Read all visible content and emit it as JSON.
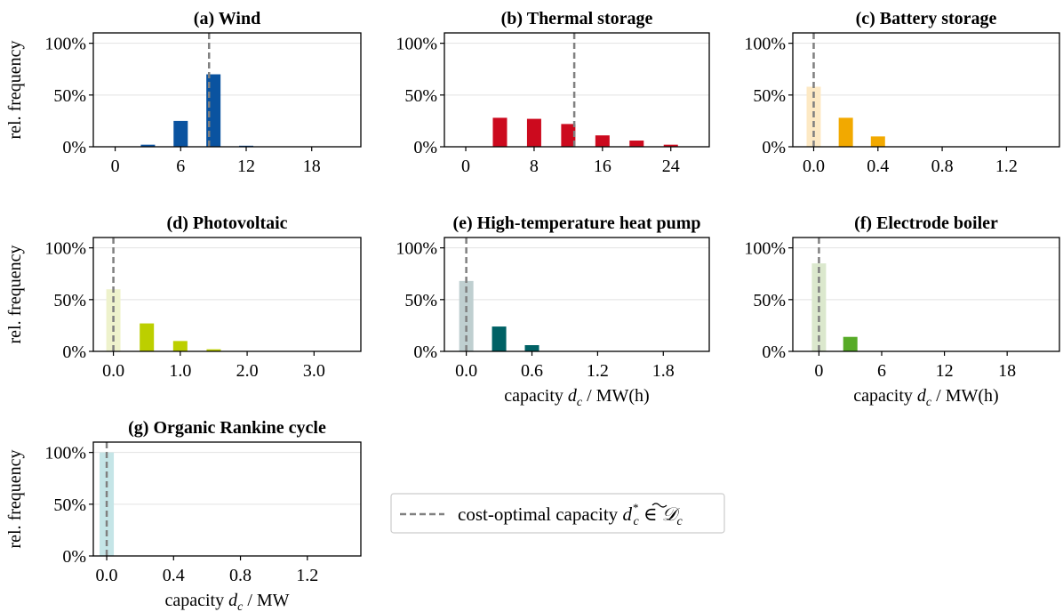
{
  "legend": {
    "prefix": "cost-optimal capacity ",
    "d": "d",
    "sub": "c",
    "sup": "*",
    "elem": " ∈ ",
    "cal": "𝒟",
    "calsub": "c"
  },
  "chart_data": [
    {
      "type": "bar",
      "title": "(a) Wind",
      "color": "#0a53a0",
      "light_color": null,
      "x": [
        0,
        3,
        6,
        9,
        12,
        15,
        18,
        21
      ],
      "values": [
        0,
        2,
        25,
        70,
        1,
        0,
        0,
        0
      ],
      "xlim": [
        -2,
        22.5
      ],
      "xticks": [
        0,
        6,
        12,
        18
      ],
      "xticklabels": [
        "0",
        "6",
        "12",
        "18"
      ],
      "ylim": [
        0,
        110
      ],
      "yticks": [
        0,
        50,
        100
      ],
      "yticklabels": [
        "0%",
        "50%",
        "100%"
      ],
      "optimal": 8.6,
      "ylabel": "rel. frequency",
      "xlabel": null
    },
    {
      "type": "bar",
      "title": "(b) Thermal storage",
      "color": "#cc0a1e",
      "light_color": null,
      "x": [
        0,
        4,
        8,
        12,
        16,
        20,
        24
      ],
      "values": [
        0,
        28,
        27,
        22,
        11,
        6,
        2
      ],
      "xlim": [
        -2.5,
        28.5
      ],
      "xticks": [
        0,
        8,
        16,
        24
      ],
      "xticklabels": [
        "0",
        "8",
        "16",
        "24"
      ],
      "ylim": [
        0,
        110
      ],
      "yticks": [
        0,
        50,
        100
      ],
      "yticklabels": [
        "0%",
        "50%",
        "100%"
      ],
      "optimal": 12.7,
      "ylabel": null,
      "xlabel": null
    },
    {
      "type": "bar",
      "title": "(c) Battery storage",
      "color": "#f2a900",
      "light_color": "#fde9c4",
      "x": [
        0,
        0.2,
        0.4,
        0.6,
        0.8,
        1.0,
        1.2,
        1.4
      ],
      "values": [
        58,
        28,
        10,
        0,
        0,
        0,
        0,
        0
      ],
      "xlim": [
        -0.13,
        1.53
      ],
      "xticks": [
        0,
        0.4,
        0.8,
        1.2
      ],
      "xticklabels": [
        "0.0",
        "0.4",
        "0.8",
        "1.2"
      ],
      "ylim": [
        0,
        110
      ],
      "yticks": [
        0,
        50,
        100
      ],
      "yticklabels": [
        "0%",
        "50%",
        "100%"
      ],
      "optimal": 0,
      "ylabel": null,
      "xlabel": null
    },
    {
      "type": "bar",
      "title": "(d) Photovoltaic",
      "color": "#bccf00",
      "light_color": "#eef2cc",
      "x": [
        0,
        0.5,
        1.0,
        1.5,
        2.0,
        2.5,
        3.0,
        3.5
      ],
      "values": [
        60,
        27,
        10,
        2,
        0,
        0,
        0,
        0
      ],
      "xlim": [
        -0.3,
        3.7
      ],
      "xticks": [
        0,
        1,
        2,
        3
      ],
      "xticklabels": [
        "0.0",
        "1.0",
        "2.0",
        "3.0"
      ],
      "ylim": [
        0,
        110
      ],
      "yticks": [
        0,
        50,
        100
      ],
      "yticklabels": [
        "0%",
        "50%",
        "100%"
      ],
      "optimal": 0,
      "ylabel": "rel. frequency",
      "xlabel": null
    },
    {
      "type": "bar",
      "title": "(e) High-temperature heat pump",
      "color": "#006165",
      "light_color": "#bfcfd0",
      "x": [
        0,
        0.3,
        0.6,
        0.9,
        1.2,
        1.5,
        1.8,
        2.1
      ],
      "values": [
        68,
        24,
        6,
        0,
        0,
        0,
        0,
        0
      ],
      "xlim": [
        -0.2,
        2.22
      ],
      "xticks": [
        0,
        0.6,
        1.2,
        1.8
      ],
      "xticklabels": [
        "0.0",
        "0.6",
        "1.2",
        "1.8"
      ],
      "ylim": [
        0,
        110
      ],
      "yticks": [
        0,
        50,
        100
      ],
      "yticklabels": [
        "0%",
        "50%",
        "100%"
      ],
      "optimal": 0,
      "ylabel": null,
      "xlabel": {
        "prefix": "capacity ",
        "var": "d",
        "sub": "c",
        "suffix": " / MW(h)"
      }
    },
    {
      "type": "bar",
      "title": "(f) Electrode boiler",
      "color": "#57ab27",
      "light_color": "#dbe8cd",
      "x": [
        0,
        3,
        6,
        9,
        12,
        15,
        18,
        21
      ],
      "values": [
        85,
        14,
        0,
        0,
        0,
        0,
        0,
        0
      ],
      "xlim": [
        -2.5,
        23
      ],
      "xticks": [
        0,
        6,
        12,
        18
      ],
      "xticklabels": [
        "0",
        "6",
        "12",
        "18"
      ],
      "ylim": [
        0,
        110
      ],
      "yticks": [
        0,
        50,
        100
      ],
      "yticklabels": [
        "0%",
        "50%",
        "100%"
      ],
      "optimal": 0,
      "ylabel": null,
      "xlabel": {
        "prefix": "capacity ",
        "var": "d",
        "sub": "c",
        "suffix": " / MW(h)"
      }
    },
    {
      "type": "bar",
      "title": "(g) Organic Rankine cycle",
      "color": "#00a0a8",
      "light_color": "#c5e5e7",
      "x": [
        0
      ],
      "values": [
        100
      ],
      "xlim": [
        -0.08,
        1.52
      ],
      "xticks": [
        0,
        0.4,
        0.8,
        1.2
      ],
      "xticklabels": [
        "0.0",
        "0.4",
        "0.8",
        "1.2"
      ],
      "ylim": [
        0,
        110
      ],
      "yticks": [
        0,
        50,
        100
      ],
      "yticklabels": [
        "0%",
        "50%",
        "100%"
      ],
      "optimal": 0,
      "ylabel": "rel. frequency",
      "xlabel": {
        "prefix": "capacity ",
        "var": "d",
        "sub": "c",
        "suffix": " / MW"
      }
    }
  ]
}
